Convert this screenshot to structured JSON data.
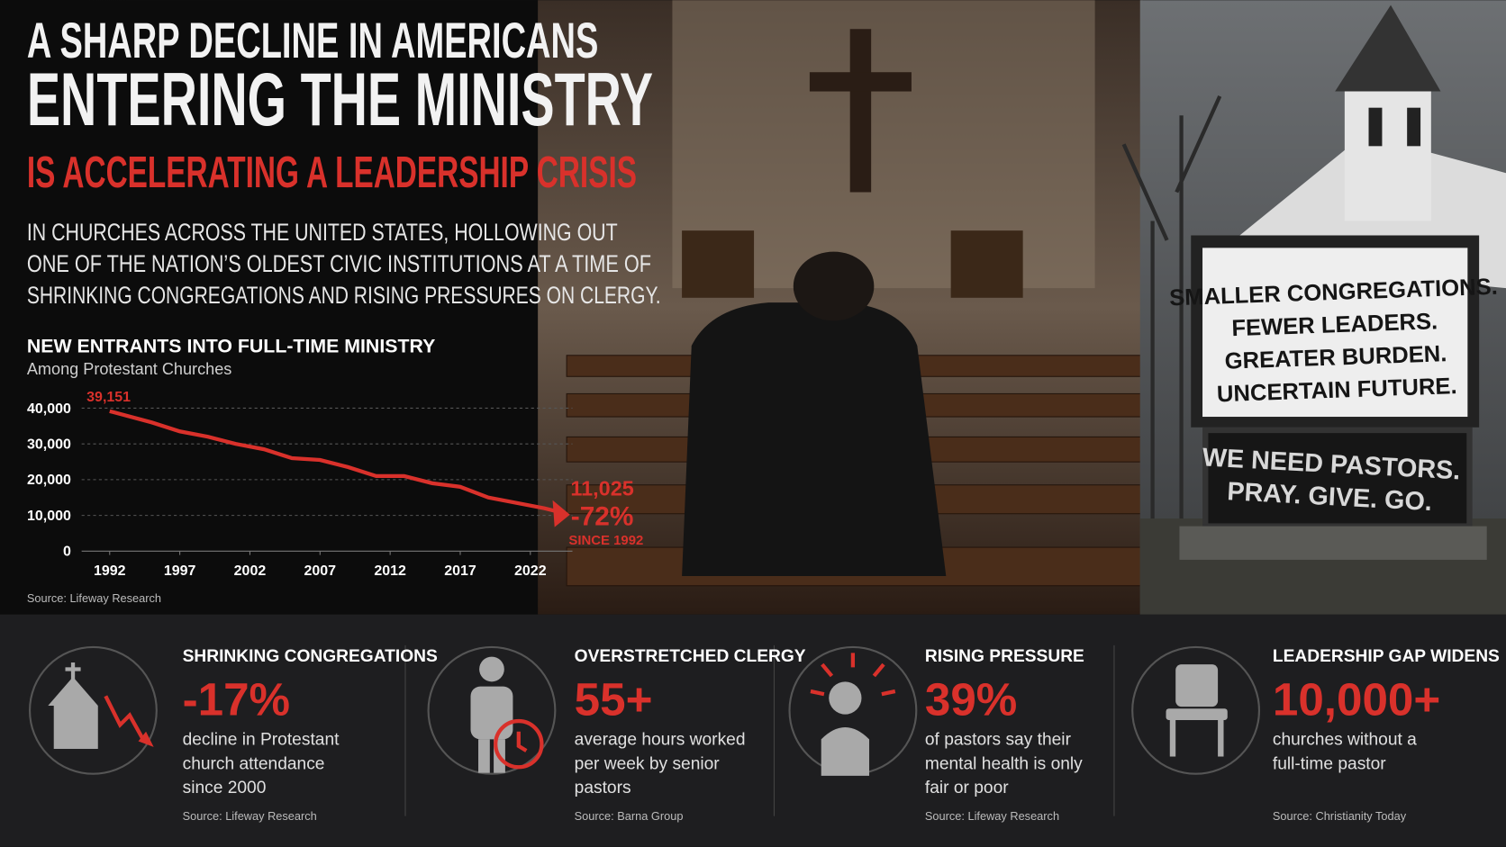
{
  "header": {
    "title_lines": [
      "A SHARP DECLINE IN AMERICANS",
      "ENTERING THE MINISTRY",
      "IS ACCELERATING A LEADERSHIP CRISIS"
    ],
    "subtitle_lines": [
      "IN CHURCHES ACROSS THE UNITED STATES, HOLLOWING OUT",
      "ONE OF THE NATION’S OLDEST CIVIC INSTITUTIONS AT A TIME OF",
      "SHRINKING CONGREGATIONS AND RISING PRESSURES ON CLERGY."
    ]
  },
  "chart_data": {
    "type": "line",
    "title": "NEW ENTRANTS INTO FULL-TIME MINISTRY",
    "subtitle": "Among Protestant Churches",
    "x": [
      1992,
      1995,
      1997,
      1999,
      2001,
      2003,
      2005,
      2007,
      2009,
      2011,
      2013,
      2015,
      2017,
      2019,
      2021,
      2023,
      2024
    ],
    "values": [
      39151,
      36000,
      33500,
      32000,
      30000,
      28500,
      26000,
      25500,
      23500,
      21000,
      21000,
      19000,
      18000,
      15000,
      13500,
      12000,
      11025
    ],
    "value_labels": [
      "39,151",
      null,
      null,
      null,
      null,
      null,
      null,
      null,
      null,
      null,
      null,
      null,
      null,
      null,
      null,
      null,
      "11,025"
    ],
    "color": "#d9312b",
    "xlim": [
      1990,
      2025
    ],
    "xticks": [
      1992,
      1997,
      2002,
      2007,
      2012,
      2017,
      2022
    ],
    "ylim": [
      0,
      40000
    ],
    "yticks": [
      0,
      {
        "value": 10000,
        "label": "10,000"
      },
      {
        "value": 20000,
        "label": "20,000"
      },
      {
        "value": 30000,
        "label": "30,000"
      },
      {
        "value": 40000,
        "label": "40,000"
      }
    ],
    "grid": true,
    "annotations": [
      "-72%",
      "SINCE 1992"
    ],
    "source": "Source: Lifeway Research"
  },
  "sign": {
    "board_lines": [
      "SMALLER CONGREGATIONS.",
      "FEWER LEADERS.",
      "GREATER BURDEN.",
      "UNCERTAIN FUTURE."
    ],
    "panel_lines": [
      "WE NEED PASTORS.",
      "PRAY. GIVE. GO."
    ]
  },
  "stats": [
    {
      "title": "SHRINKING CONGREGATIONS",
      "value": "-17%",
      "description_lines": [
        "decline in Protestant",
        "church attendance",
        "since 2000"
      ],
      "source": "Source: Lifeway Research"
    },
    {
      "title": "OVERSTRETCHED CLERGY",
      "value": "55+",
      "description_lines": [
        "average hours worked",
        "per week by senior",
        "pastors"
      ],
      "source": "Source: Barna Group"
    },
    {
      "title": "RISING PRESSURE",
      "value": "39%",
      "description_lines": [
        "of pastors say their",
        "mental health is only",
        "fair or poor"
      ],
      "source": "Source: Lifeway Research"
    },
    {
      "title": "LEADERSHIP GAP WIDENS",
      "value": "10,000+",
      "description_lines": [
        "churches without a",
        "full-time pastor"
      ],
      "source": "Source: Christianity Today"
    }
  ]
}
